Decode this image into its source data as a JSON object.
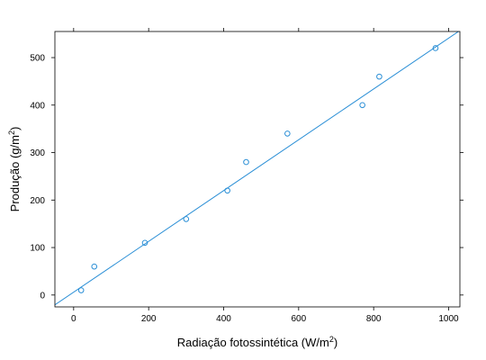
{
  "chart_data": {
    "type": "scatter",
    "xlabel": {
      "main": "Radiação fotossintética (W/m",
      "sup": "2",
      "tail": ")"
    },
    "ylabel": {
      "main": "Produção (g/m",
      "sup": "2",
      "tail": ")"
    },
    "xlim": [
      -50,
      1030
    ],
    "ylim": [
      -25,
      555
    ],
    "xticks": [
      0,
      200,
      400,
      600,
      800,
      1000
    ],
    "yticks": [
      0,
      100,
      200,
      300,
      400,
      500
    ],
    "points": [
      {
        "x": 20,
        "y": 10
      },
      {
        "x": 55,
        "y": 60
      },
      {
        "x": 190,
        "y": 110
      },
      {
        "x": 300,
        "y": 160
      },
      {
        "x": 410,
        "y": 220
      },
      {
        "x": 460,
        "y": 280
      },
      {
        "x": 570,
        "y": 340
      },
      {
        "x": 770,
        "y": 400
      },
      {
        "x": 815,
        "y": 460
      },
      {
        "x": 965,
        "y": 520
      }
    ],
    "fit_line": {
      "intercept": 6,
      "slope": 0.535
    },
    "colors": {
      "series": "#2b8fd6",
      "frame": "#000000"
    }
  }
}
